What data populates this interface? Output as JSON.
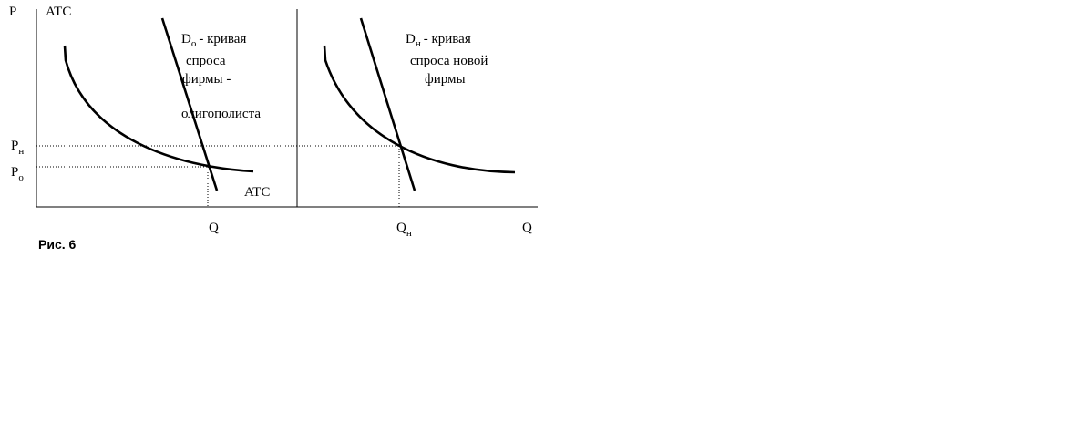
{
  "axes": {
    "y_label": "P",
    "y_label_2": "ATC",
    "x_label_right": "Q"
  },
  "left_panel": {
    "demand_label": {
      "symbol": "D",
      "subscript": "о",
      "lines": [
        "- кривая",
        "спроса",
        "фирмы -",
        "олигополиста"
      ]
    },
    "atc_label": "ATC",
    "price_label": {
      "symbol": "P",
      "subscript": "о"
    },
    "quantity_label": "Q"
  },
  "right_panel": {
    "demand_label": {
      "symbol": "D",
      "subscript": "н",
      "lines": [
        "- кривая",
        "спроса новой",
        "фирмы"
      ]
    },
    "price_label": {
      "symbol": "P",
      "subscript": "н"
    },
    "quantity_label": {
      "symbol": "Q",
      "subscript": "н"
    }
  },
  "caption": "Рис. 6"
}
